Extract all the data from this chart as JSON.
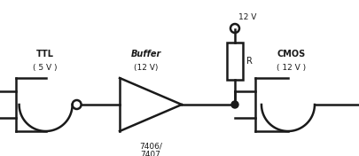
{
  "bg_color": "#ffffff",
  "line_color": "#1a1a1a",
  "lw": 1.8,
  "ttl_label": "TTL",
  "ttl_sublabel": "( 5 V )",
  "buffer_label": "Buffer",
  "buffer_sublabel": "(12 V)",
  "buffer_ic": "7406/\n7407",
  "cmos_label": "CMOS",
  "cmos_sublabel": "( 12 V )",
  "vcc_label": "12 V",
  "resistor_label": "R",
  "figsize": [
    4.06,
    1.76
  ],
  "dpi": 100
}
